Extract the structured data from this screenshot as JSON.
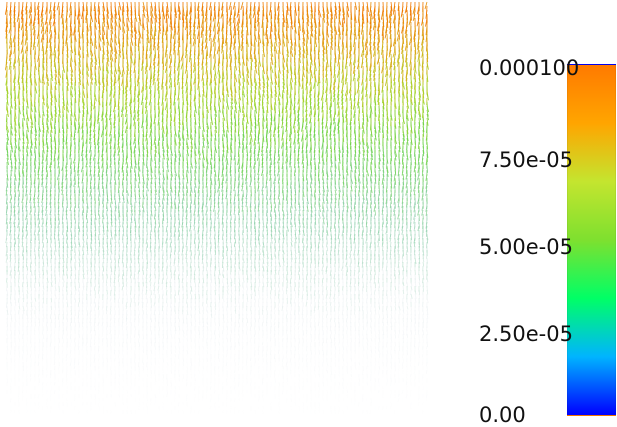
{
  "visualization": {
    "type": "vector-glyph-field",
    "color_scale": {
      "max_label": "0.000100",
      "tick_labels": [
        "7.50e-05",
        "5.00e-05",
        "2.50e-05"
      ],
      "min_label": "0.00",
      "max_value": 0.0001,
      "min_value": 0.0,
      "colors": [
        "#0000ff",
        "#00b4ff",
        "#00ff66",
        "#7ee02f",
        "#c4e52f",
        "#ffa500",
        "#ff7a00"
      ]
    }
  }
}
